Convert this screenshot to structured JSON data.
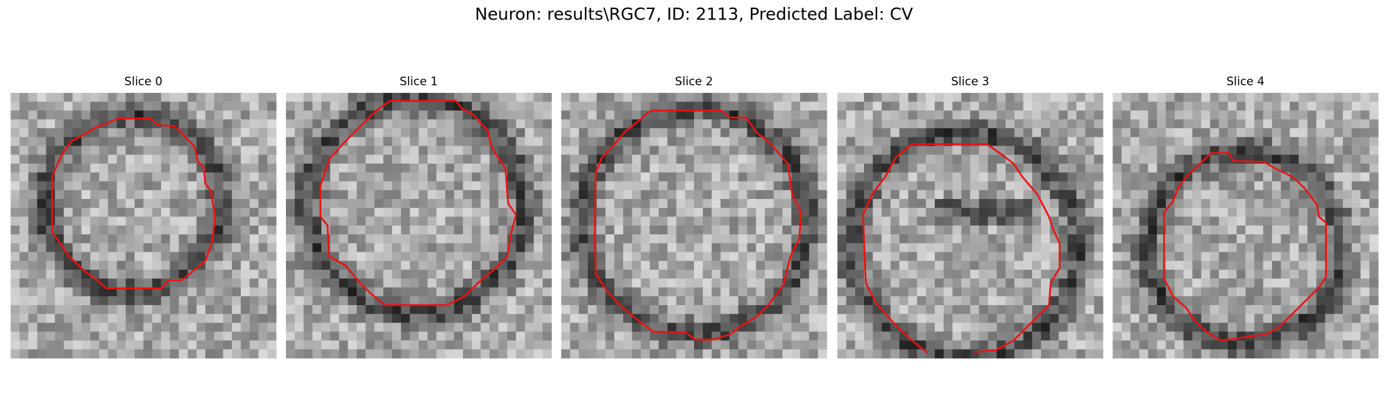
{
  "title": "Neuron: results\\RGC7, ID: 2113, Predicted Label: CV",
  "panels": [
    {
      "title": "Slice 0"
    },
    {
      "title": "Slice 1"
    },
    {
      "title": "Slice 2"
    },
    {
      "title": "Slice 3"
    },
    {
      "title": "Slice 4"
    }
  ]
}
